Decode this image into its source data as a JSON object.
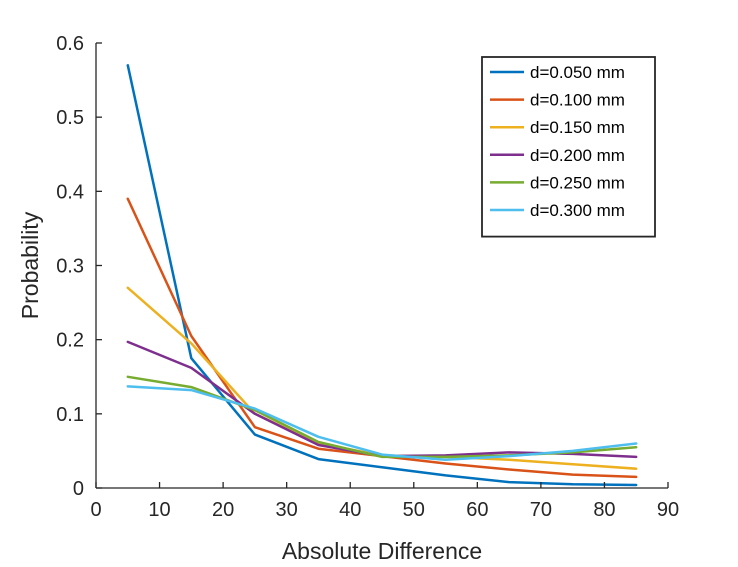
{
  "chart_data": {
    "type": "line",
    "title": "",
    "xlabel": "Absolute Difference",
    "ylabel": "Probability",
    "xlim": [
      0,
      90
    ],
    "ylim": [
      0,
      0.6
    ],
    "xticks": [
      0,
      10,
      20,
      30,
      40,
      50,
      60,
      70,
      80,
      90
    ],
    "yticks": [
      0,
      0.1,
      0.2,
      0.3,
      0.4,
      0.5,
      0.6
    ],
    "xtick_labels": [
      "0",
      "10",
      "20",
      "30",
      "40",
      "50",
      "60",
      "70",
      "80",
      "90"
    ],
    "ytick_labels": [
      "0",
      "0.1",
      "0.2",
      "0.3",
      "0.4",
      "0.5",
      "0.6"
    ],
    "grid": false,
    "legend_position": "top-right",
    "x": [
      5,
      15,
      25,
      35,
      45,
      55,
      65,
      75,
      85
    ],
    "series": [
      {
        "name": "d=0.050 mm",
        "color": "#0072BD",
        "values": [
          0.57,
          0.175,
          0.072,
          0.039,
          0.028,
          0.017,
          0.008,
          0.005,
          0.004
        ]
      },
      {
        "name": "d=0.100 mm",
        "color": "#D95319",
        "values": [
          0.39,
          0.205,
          0.082,
          0.053,
          0.043,
          0.033,
          0.025,
          0.018,
          0.015
        ]
      },
      {
        "name": "d=0.150 mm",
        "color": "#EDB120",
        "values": [
          0.27,
          0.195,
          0.1,
          0.06,
          0.044,
          0.042,
          0.038,
          0.032,
          0.026
        ]
      },
      {
        "name": "d=0.200 mm",
        "color": "#7E2F8E",
        "values": [
          0.197,
          0.162,
          0.1,
          0.058,
          0.043,
          0.044,
          0.048,
          0.046,
          0.042
        ]
      },
      {
        "name": "d=0.250 mm",
        "color": "#77AC30",
        "values": [
          0.15,
          0.136,
          0.105,
          0.062,
          0.042,
          0.042,
          0.044,
          0.048,
          0.055
        ]
      },
      {
        "name": "d=0.300 mm",
        "color": "#4DBEEE",
        "values": [
          0.137,
          0.132,
          0.107,
          0.069,
          0.045,
          0.038,
          0.043,
          0.05,
          0.06
        ]
      }
    ]
  }
}
